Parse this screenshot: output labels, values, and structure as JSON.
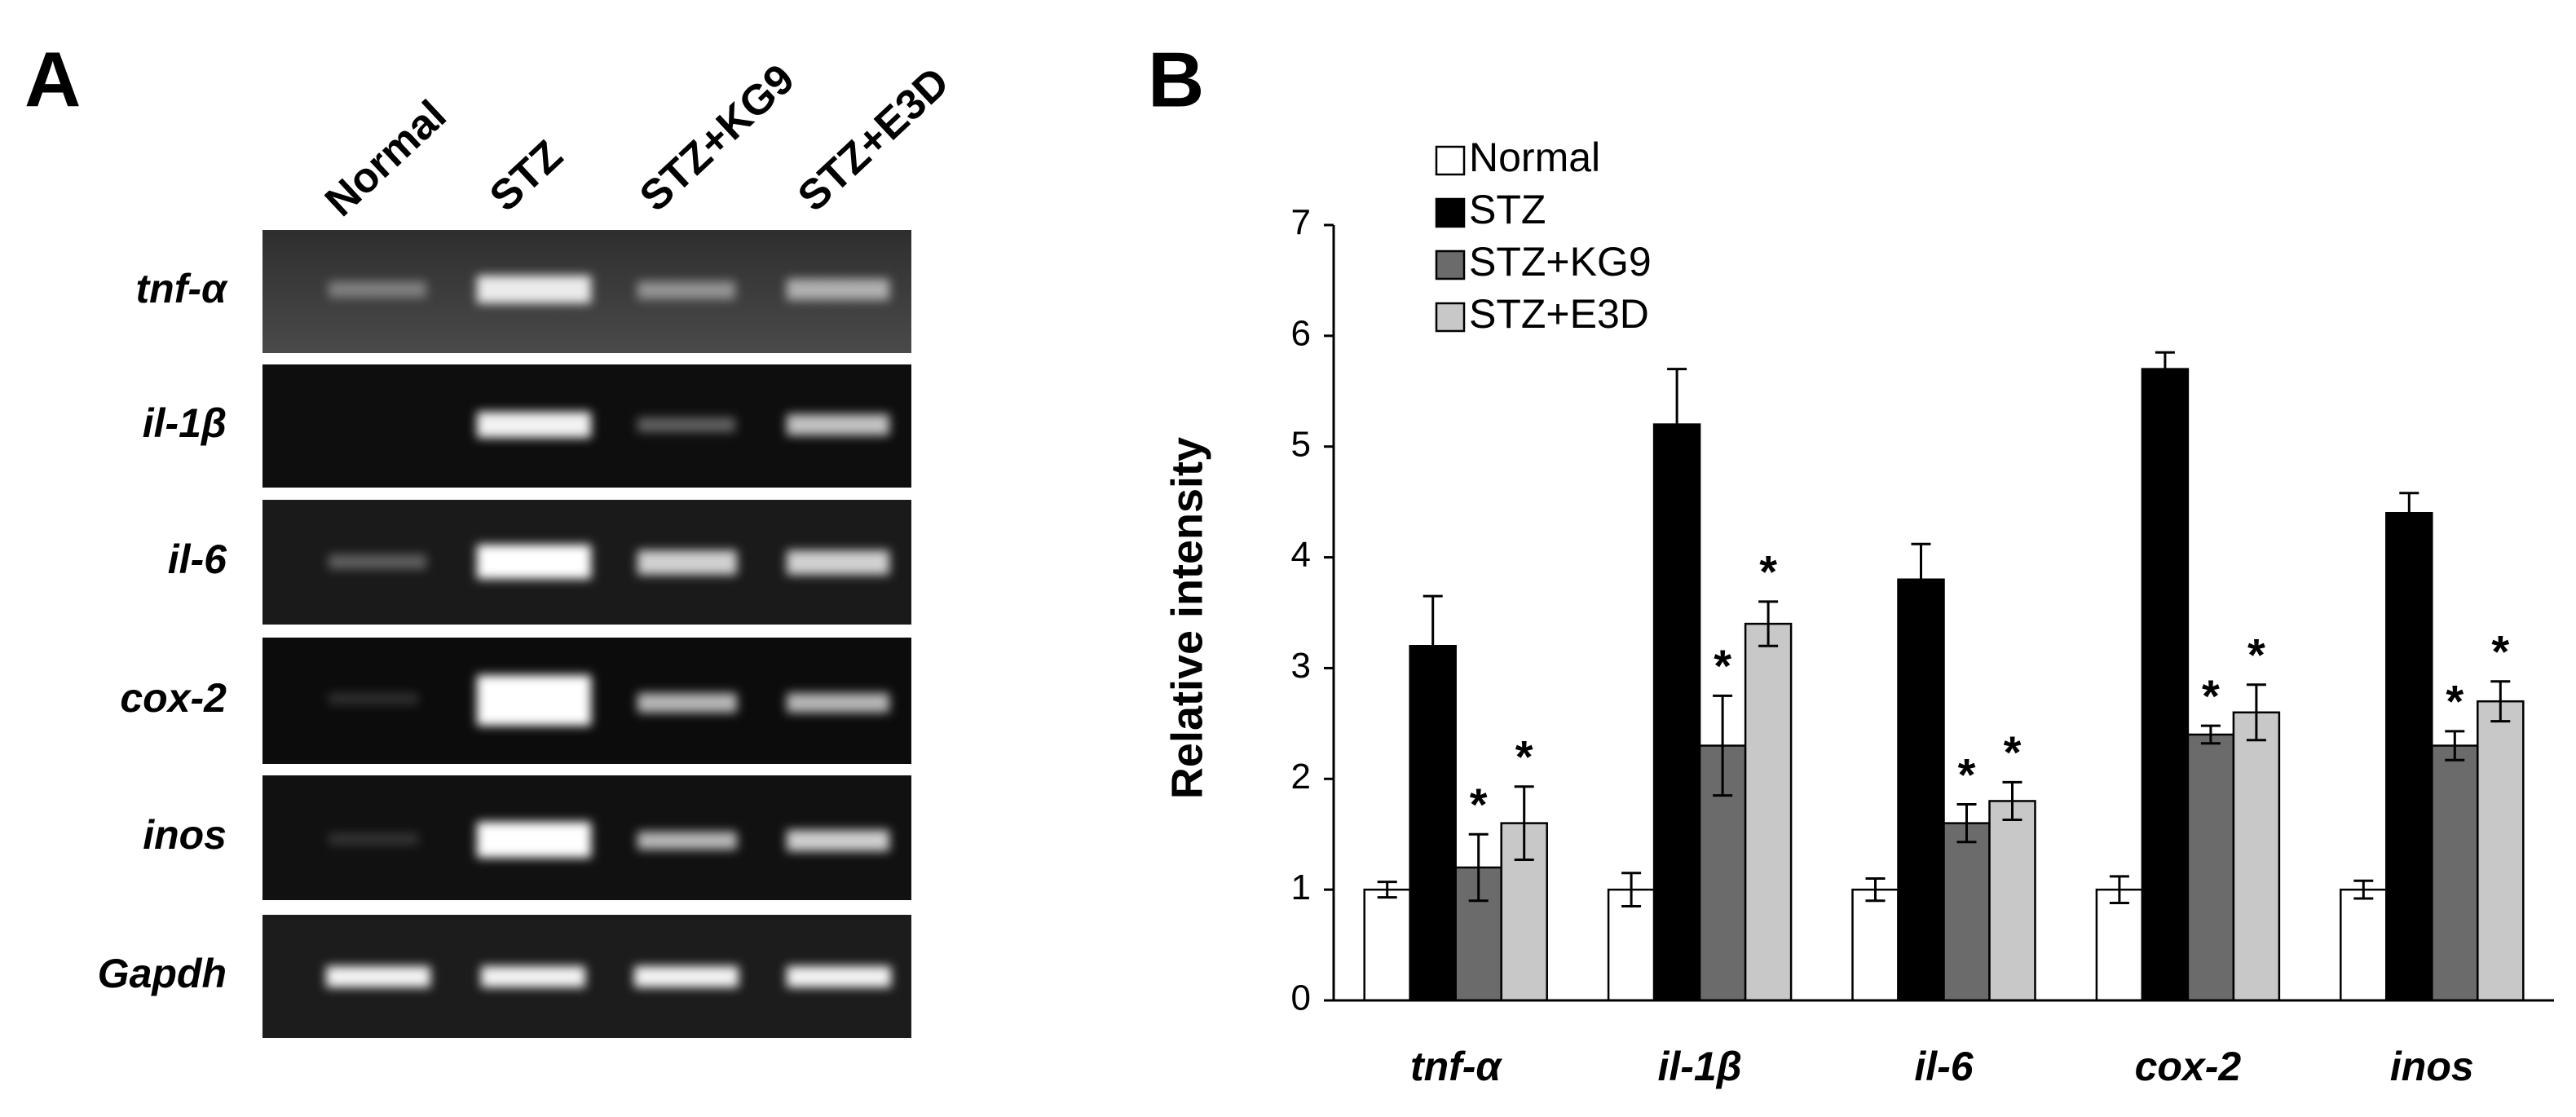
{
  "gel": {
    "panel_label": "A",
    "lanes": [
      "Normal",
      "STZ",
      "STZ+KG9",
      "STZ+E3D"
    ],
    "genes": [
      "tnf-α",
      "il-1β",
      "il-6",
      "cox-2",
      "inos",
      "Gapdh"
    ]
  },
  "chart_data": {
    "type": "bar",
    "panel_label": "B",
    "ylabel": "Relative intensity",
    "categories": [
      "tnf-α",
      "il-1β",
      "il-6",
      "cox-2",
      "inos"
    ],
    "ylim": [
      0,
      7
    ],
    "yticks": [
      0,
      1,
      2,
      3,
      4,
      5,
      6,
      7
    ],
    "grid": false,
    "legend": "top-left",
    "series": [
      {
        "name": "Normal",
        "color": "#ffffff",
        "values": [
          1,
          1,
          1,
          1,
          1
        ],
        "errors": [
          0.07,
          0.15,
          0.1,
          0.12,
          0.08
        ]
      },
      {
        "name": "STZ",
        "color": "#000000",
        "values": [
          3.2,
          5.2,
          3.8,
          5.7,
          4.4
        ],
        "errors": [
          0.45,
          0.5,
          0.32,
          0.15,
          0.18
        ]
      },
      {
        "name": "STZ+KG9",
        "color": "#6b6b6b",
        "values": [
          1.2,
          2.3,
          1.6,
          2.4,
          2.3
        ],
        "errors": [
          0.3,
          0.45,
          0.17,
          0.08,
          0.13
        ],
        "significance": [
          "*",
          "*",
          "*",
          "*",
          "*"
        ]
      },
      {
        "name": "STZ+E3D",
        "color": "#c8c8c8",
        "values": [
          1.6,
          3.4,
          1.8,
          2.6,
          2.7
        ],
        "errors": [
          0.33,
          0.2,
          0.17,
          0.25,
          0.18
        ],
        "significance": [
          "*",
          "*",
          "*",
          "*",
          "*"
        ]
      }
    ]
  }
}
